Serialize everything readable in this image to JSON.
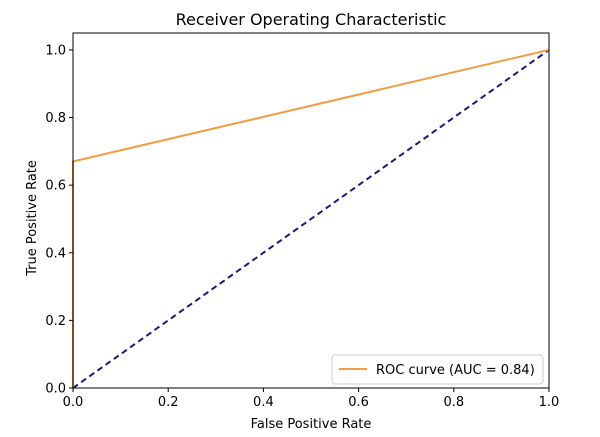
{
  "chart_data": {
    "type": "line",
    "title": "Receiver Operating Characteristic",
    "xlabel": "False Positive Rate",
    "ylabel": "True Positive Rate",
    "xlim": [
      0.0,
      1.0
    ],
    "ylim": [
      0.0,
      1.05
    ],
    "xticks": [
      "0.0",
      "0.2",
      "0.4",
      "0.6",
      "0.8",
      "1.0"
    ],
    "yticks": [
      "0.0",
      "0.2",
      "0.4",
      "0.6",
      "0.8",
      "1.0"
    ],
    "grid": false,
    "legend_position": "lower-right",
    "series": [
      {
        "name": "ROC curve (AUC = 0.84)",
        "color": "#f39c45",
        "style": "solid",
        "x": [
          0.0,
          0.0,
          1.0
        ],
        "y": [
          0.0,
          0.67,
          1.0
        ]
      },
      {
        "color": "#1a1a7a",
        "style": "dashed",
        "x": [
          0.0,
          1.0
        ],
        "y": [
          0.0,
          1.0
        ]
      }
    ]
  }
}
